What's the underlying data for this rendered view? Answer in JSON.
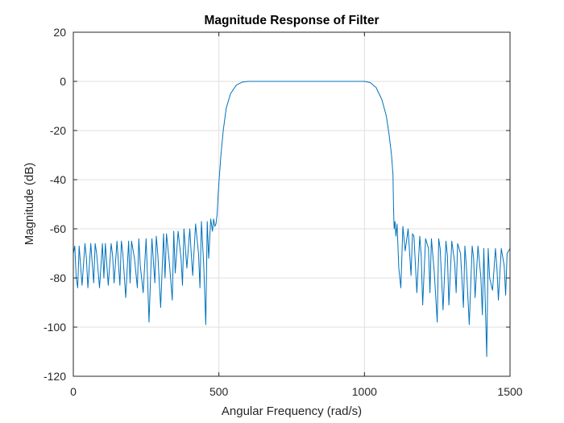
{
  "chart_data": {
    "type": "line",
    "title": "Magnitude Response of Filter",
    "xlabel": "Angular Frequency (rad/s)",
    "ylabel": "Magnitude (dB)",
    "xlim": [
      0,
      1500
    ],
    "ylim": [
      -120,
      20
    ],
    "xticks": [
      "0",
      "500",
      "1000",
      "1500"
    ],
    "yticks": [
      "20",
      "0",
      "-20",
      "-40",
      "-60",
      "-80",
      "-100",
      "-120"
    ],
    "grid": true,
    "series": [
      {
        "color": "#0072BD",
        "x": [
          0,
          5,
          10,
          15,
          20,
          30,
          40,
          45,
          50,
          60,
          70,
          75,
          80,
          90,
          100,
          105,
          110,
          120,
          130,
          135,
          140,
          150,
          160,
          165,
          170,
          180,
          190,
          195,
          200,
          210,
          220,
          225,
          230,
          240,
          250,
          255,
          260,
          270,
          280,
          285,
          290,
          300,
          310,
          315,
          320,
          330,
          340,
          345,
          350,
          360,
          370,
          375,
          380,
          390,
          400,
          405,
          410,
          420,
          430,
          435,
          440,
          448,
          455,
          460,
          465,
          472,
          478,
          482,
          486,
          490,
          494,
          498,
          502,
          507,
          515,
          525,
          540,
          560,
          580,
          600,
          650,
          700,
          800,
          900,
          950,
          1000,
          1020,
          1040,
          1060,
          1075,
          1085,
          1093,
          1098,
          1100,
          1102,
          1105,
          1108,
          1112,
          1118,
          1125,
          1132,
          1140,
          1150,
          1160,
          1165,
          1170,
          1180,
          1190,
          1195,
          1200,
          1210,
          1220,
          1225,
          1230,
          1240,
          1250,
          1255,
          1260,
          1270,
          1280,
          1285,
          1290,
          1300,
          1310,
          1315,
          1320,
          1330,
          1340,
          1345,
          1350,
          1360,
          1370,
          1375,
          1380,
          1390,
          1400,
          1405,
          1410,
          1415,
          1420,
          1425,
          1430,
          1440,
          1450,
          1455,
          1460,
          1470,
          1480,
          1485,
          1490,
          1500
        ],
        "y": [
          -70,
          -67,
          -80,
          -84,
          -67,
          -83,
          -66,
          -72,
          -84,
          -66,
          -82,
          -66,
          -70,
          -84,
          -66,
          -80,
          -66,
          -83,
          -66,
          -71,
          -82,
          -65,
          -83,
          -65,
          -70,
          -88,
          -65,
          -82,
          -65,
          -72,
          -84,
          -64,
          -75,
          -86,
          -64,
          -80,
          -98,
          -64,
          -82,
          -63,
          -70,
          -92,
          -62,
          -80,
          -62,
          -74,
          -89,
          -61,
          -78,
          -61,
          -72,
          -83,
          -60,
          -76,
          -60,
          -70,
          -79,
          -58,
          -70,
          -84,
          -57,
          -75,
          -99,
          -57,
          -72,
          -56,
          -61,
          -56,
          -59,
          -58,
          -54,
          -45,
          -38,
          -30,
          -20,
          -11,
          -5,
          -1.5,
          -0.3,
          0,
          0,
          0,
          0,
          0,
          0,
          0,
          -0.5,
          -2.5,
          -7.5,
          -14,
          -22,
          -30,
          -38,
          -52,
          -60,
          -57,
          -63,
          -58,
          -76,
          -84,
          -59,
          -69,
          -60,
          -79,
          -62,
          -63,
          -86,
          -63,
          -71,
          -91,
          -64,
          -68,
          -86,
          -64,
          -78,
          -98,
          -64,
          -68,
          -93,
          -65,
          -71,
          -91,
          -65,
          -74,
          -86,
          -66,
          -70,
          -92,
          -67,
          -75,
          -99,
          -67,
          -72,
          -88,
          -67,
          -80,
          -95,
          -68,
          -90,
          -112,
          -68,
          -80,
          -85,
          -68,
          -76,
          -89,
          -68,
          -75,
          -87,
          -70,
          -68
        ]
      }
    ]
  }
}
